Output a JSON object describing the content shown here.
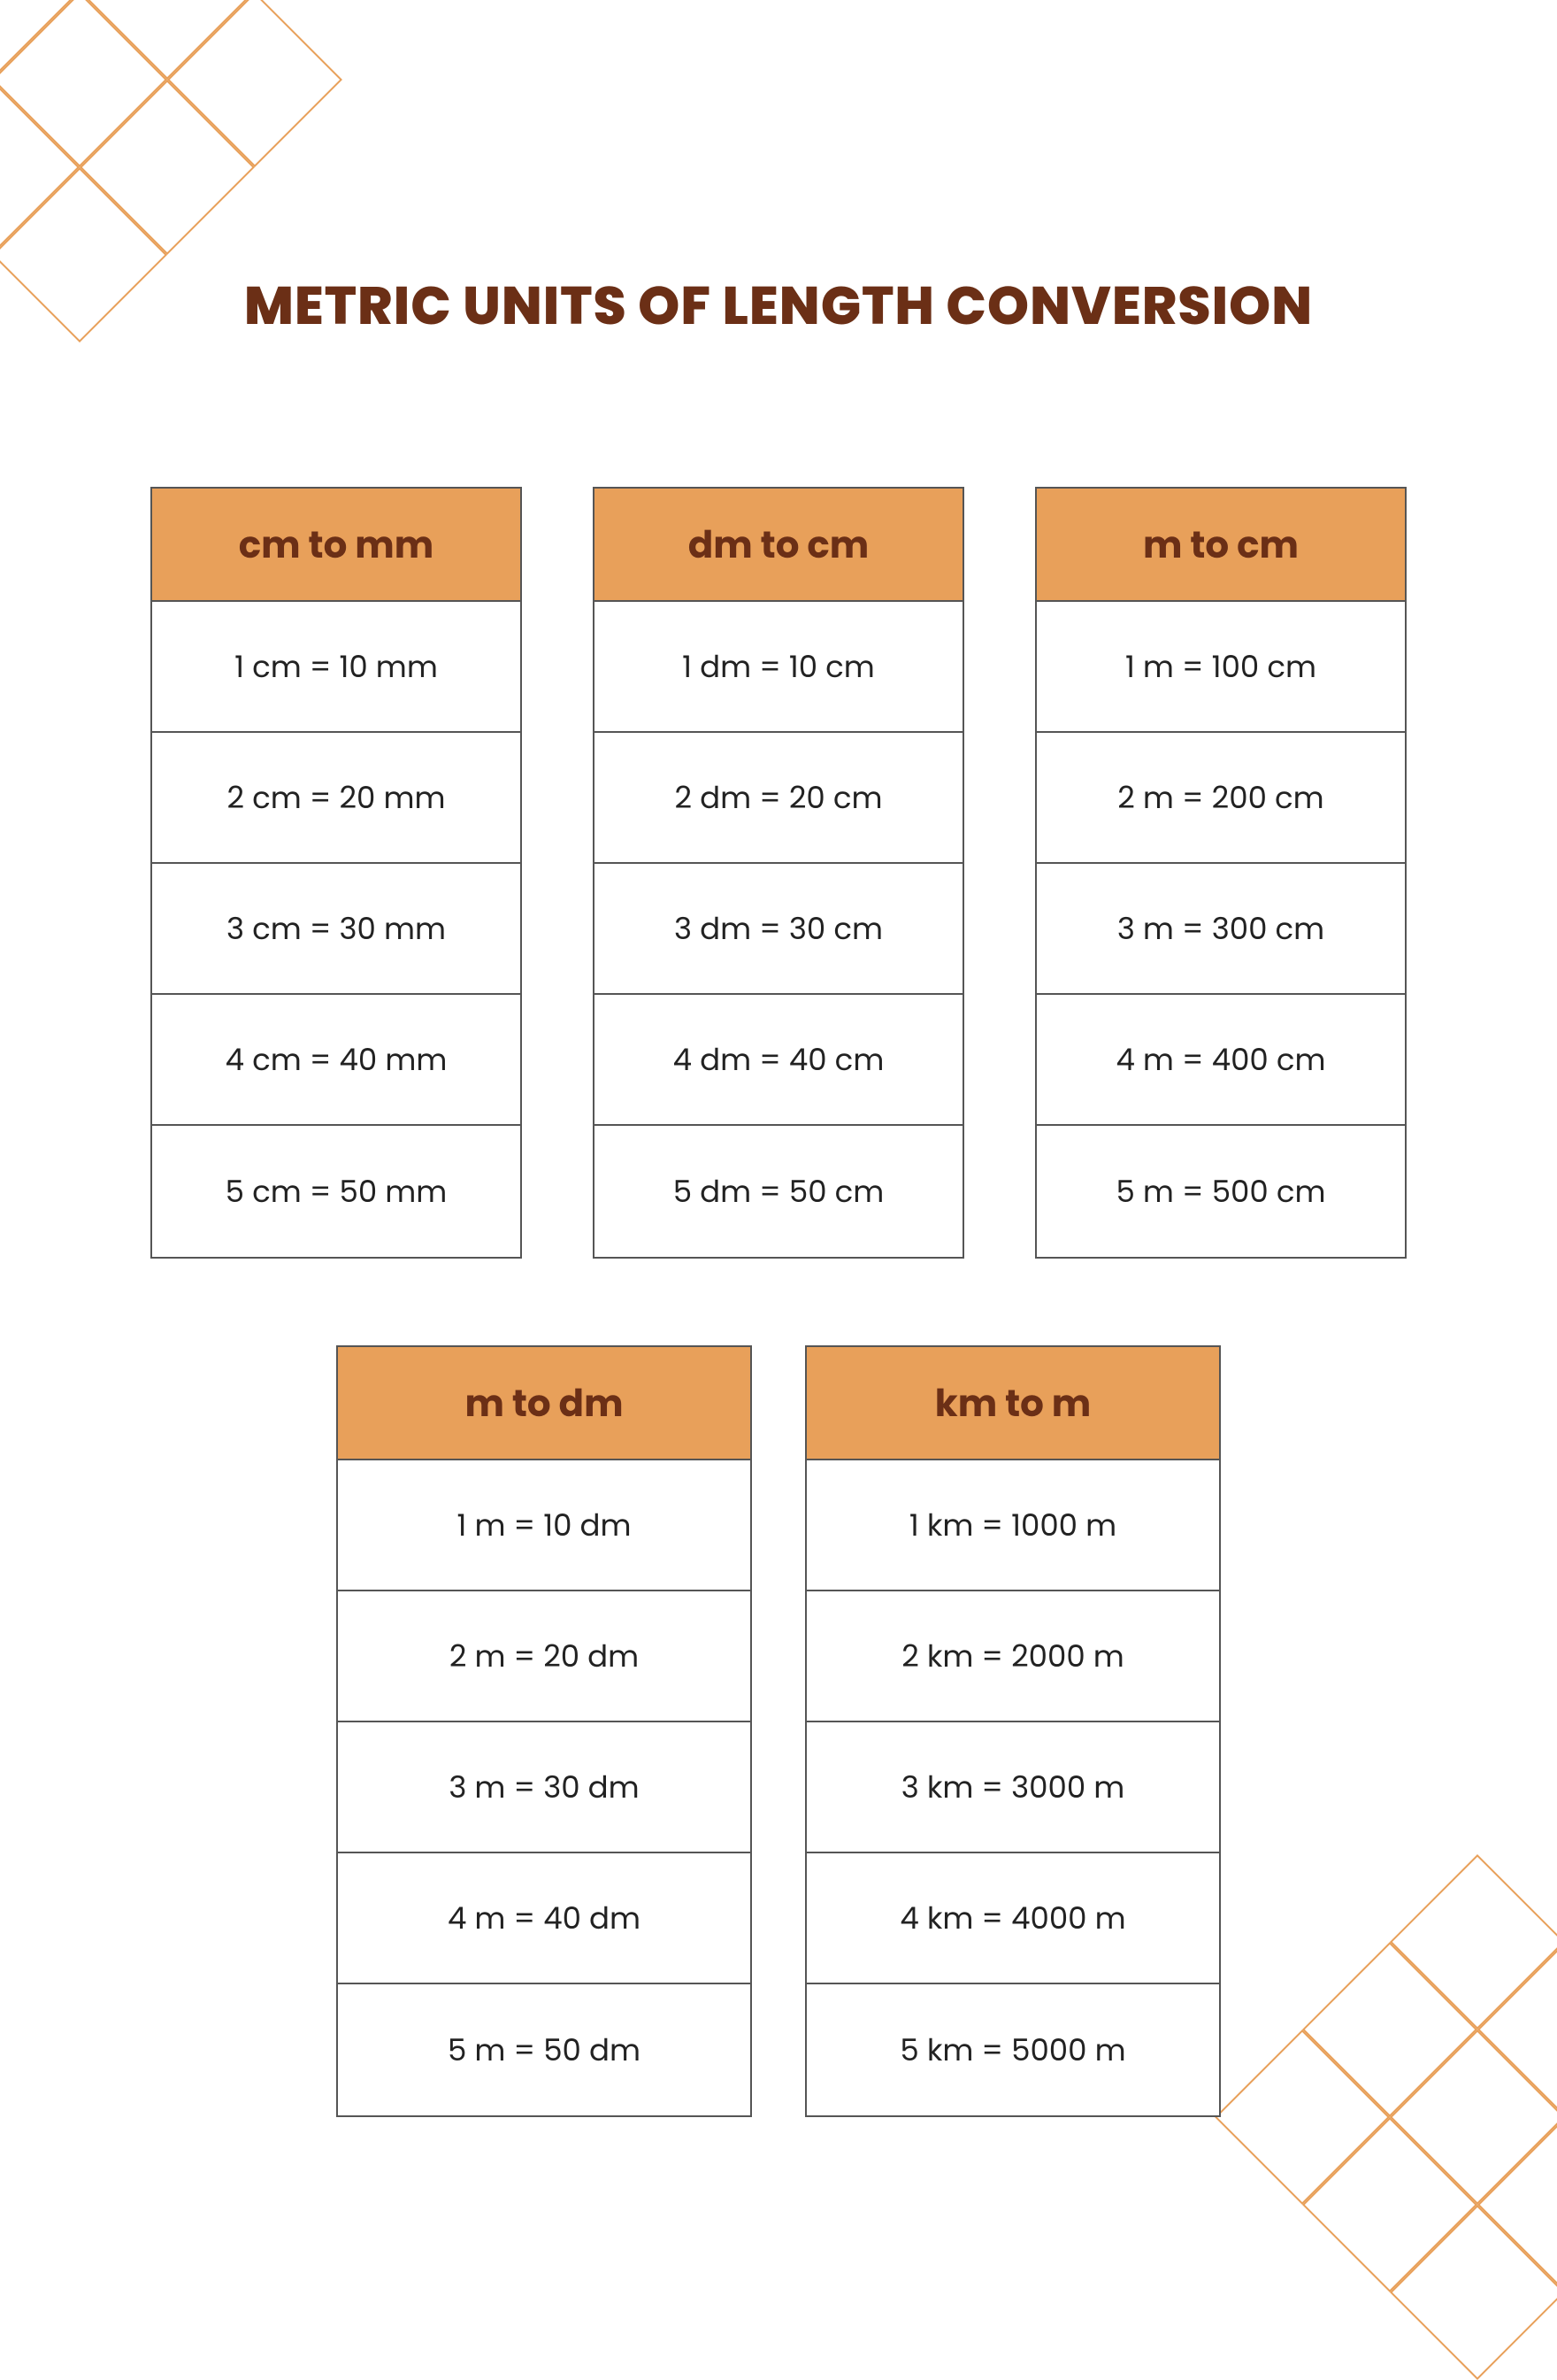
{
  "title": "METRIC UNITS OF LENGTH CONVERSION",
  "colors": {
    "header_bg": "#e8a05a",
    "title_color": "#6b2f16",
    "border_color": "#555555",
    "deco_color": "#e8a05a",
    "text_color": "#222222",
    "background": "#ffffff"
  },
  "tables": [
    {
      "id": "cm-to-mm",
      "header": "cm to mm",
      "rows": [
        "1 cm = 10 mm",
        "2 cm = 20 mm",
        "3 cm = 30 mm",
        "4 cm = 40 mm",
        "5 cm = 50 mm"
      ]
    },
    {
      "id": "dm-to-cm",
      "header": "dm to cm",
      "rows": [
        "1 dm = 10 cm",
        "2 dm = 20 cm",
        "3 dm  = 30 cm",
        "4 dm = 40 cm",
        "5 dm = 50 cm"
      ]
    },
    {
      "id": "m-to-cm",
      "header": "m to cm",
      "rows": [
        "1 m = 100 cm",
        "2 m = 200 cm",
        "3 m = 300 cm",
        "4 m = 400 cm",
        "5 m = 500 cm"
      ]
    },
    {
      "id": "m-to-dm",
      "header": "m to dm",
      "rows": [
        "1 m = 10 dm",
        "2 m = 20 dm",
        "3 m = 30 dm",
        "4 m = 40 dm",
        "5 m = 50 dm"
      ]
    },
    {
      "id": "km-to-m",
      "header": "km to m",
      "rows": [
        "1 km = 1000 m",
        "2 km = 2000 m",
        "3 km  = 3000 m",
        "4 km = 4000 m",
        "5 km = 5000 m"
      ]
    }
  ]
}
